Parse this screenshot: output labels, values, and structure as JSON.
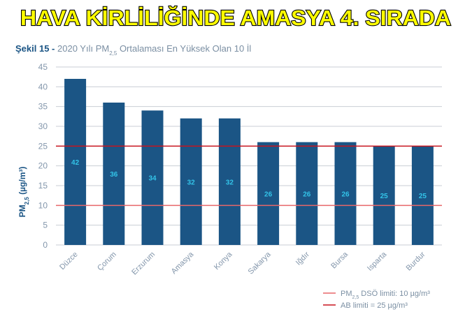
{
  "chart_data": {
    "type": "bar",
    "title": "HAVA KİRLİLİĞİNDE AMASYA 4. SIRADA",
    "subtitle": {
      "lead": "Şekil 15 -",
      "text": "2020 Yılı PM",
      "sub": "2,5",
      "rest": " Ortalaması En Yüksek Olan 10 İl"
    },
    "ylabel": {
      "main": "PM",
      "sub": "2,5",
      "unit": " (µg/m³)"
    },
    "categories": [
      "Düzce",
      "Çorum",
      "Erzurum",
      "Amasya",
      "Konya",
      "Sakarya",
      "Iğdır",
      "Bursa",
      "Isparta",
      "Burdur"
    ],
    "values": [
      42,
      36,
      34,
      32,
      32,
      26,
      26,
      26,
      25,
      25
    ],
    "color": "#1b5585",
    "value_label_color": "#33c3e8",
    "ylim": [
      0,
      45
    ],
    "yticks": [
      0,
      5,
      10,
      15,
      20,
      25,
      30,
      35,
      40,
      45
    ],
    "grid": true,
    "reference_lines": [
      {
        "value": 10,
        "color": "#e8676a",
        "label": {
          "main": "PM",
          "sub": "2,5",
          "rest": " DSÖ limiti: 10 µg/m³"
        }
      },
      {
        "value": 25,
        "color": "#c8141f",
        "label": {
          "main": "AB limiti = 25 µg/m³",
          "sub": "",
          "rest": ""
        }
      }
    ],
    "legend": "bottom-right"
  }
}
